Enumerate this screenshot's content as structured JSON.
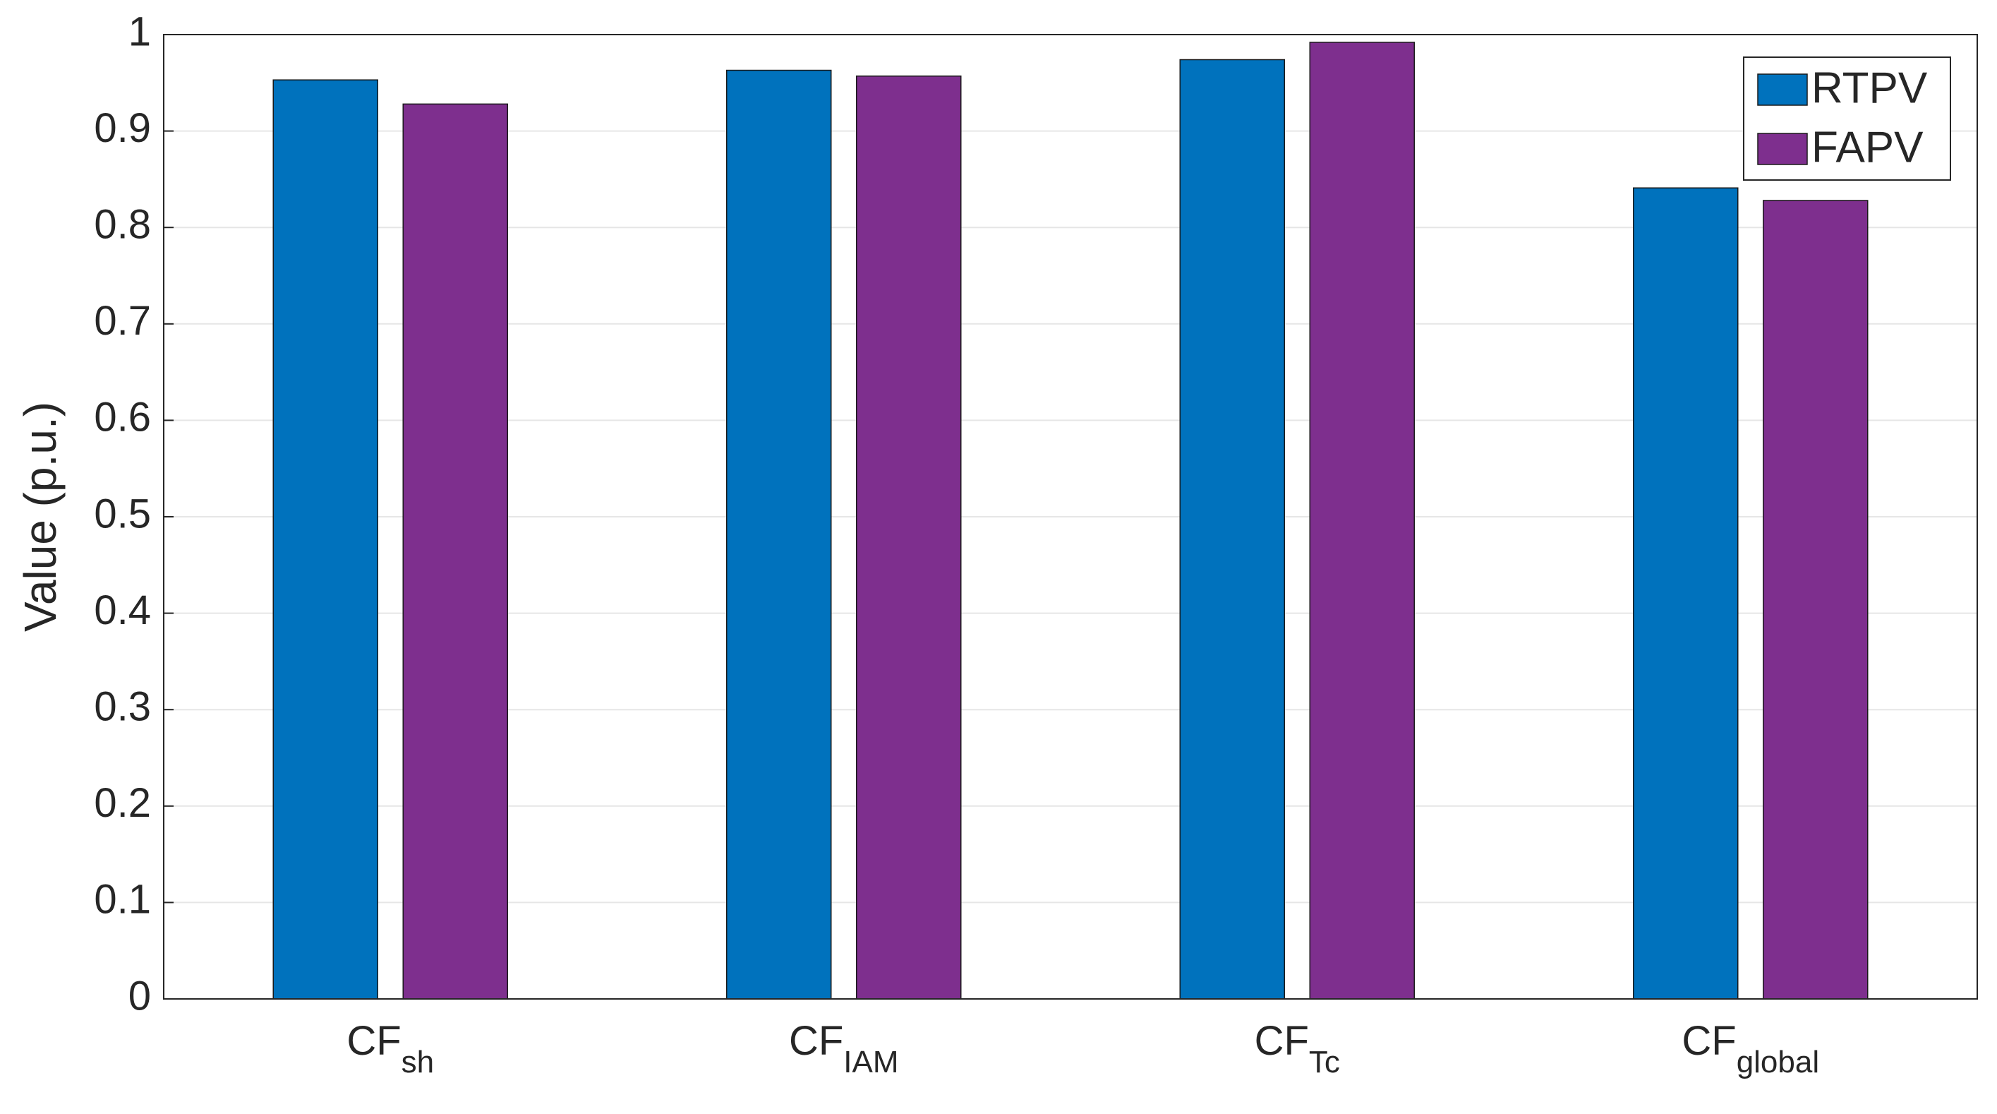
{
  "chart_data": {
    "type": "bar",
    "y_label": "Value (p.u.)",
    "categories": [
      {
        "main": "CF",
        "sub": "sh"
      },
      {
        "main": "CF",
        "sub": "IAM"
      },
      {
        "main": "CF",
        "sub": "Tc"
      },
      {
        "main": "CF",
        "sub": "global"
      }
    ],
    "series": [
      {
        "name": "RTPV",
        "color": "#0072bd",
        "values": [
          0.953,
          0.963,
          0.974,
          0.841
        ]
      },
      {
        "name": "FAPV",
        "color": "#7e2f8e",
        "values": [
          0.928,
          0.957,
          0.992,
          0.828
        ]
      }
    ],
    "ylim": [
      0,
      1
    ],
    "yticks": [
      0,
      0.1,
      0.2,
      0.3,
      0.4,
      0.5,
      0.6,
      0.7,
      0.8,
      0.9,
      1
    ],
    "grid": true,
    "legend_position": "top-right"
  }
}
